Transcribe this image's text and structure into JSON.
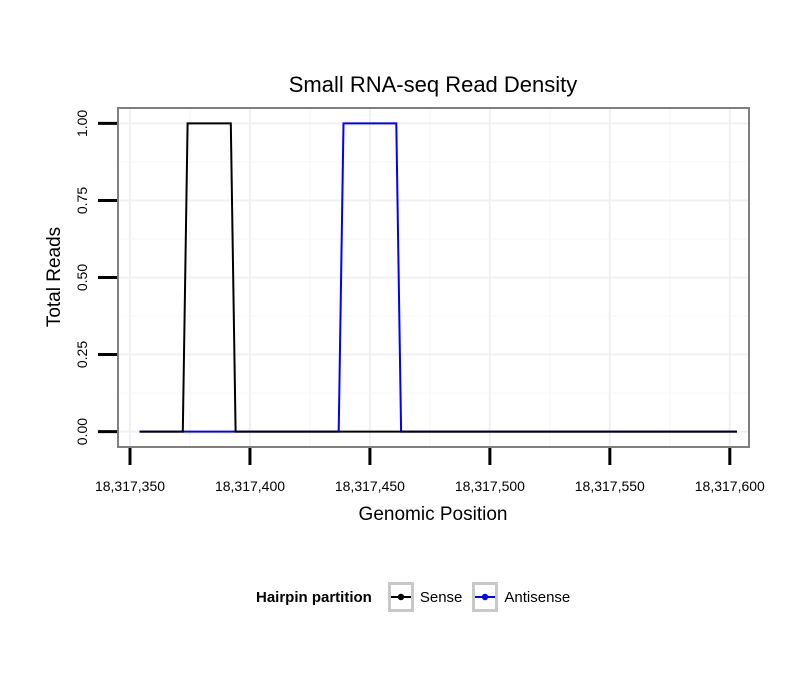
{
  "chart_data": {
    "type": "line",
    "title": "Small RNA-seq Read Density",
    "xlabel": "Genomic Position",
    "ylabel": "Total Reads",
    "xlim": [
      18317345,
      18317608
    ],
    "ylim": [
      -0.05,
      1.05
    ],
    "x_ticks": [
      18317350,
      18317400,
      18317450,
      18317500,
      18317550,
      18317600
    ],
    "x_tick_labels": [
      "18,317,350",
      "18,317,400",
      "18,317,450",
      "18,317,500",
      "18,317,550",
      "18,317,600"
    ],
    "y_ticks": [
      0,
      0.25,
      0.5,
      0.75,
      1.0
    ],
    "y_tick_labels": [
      "0.00",
      "0.25",
      "0.50",
      "0.75",
      "1.00"
    ],
    "grid": true,
    "legend_position": "bottom",
    "series": [
      {
        "name": "Antisense",
        "color": "#0000ff",
        "x": [
          18317354,
          18317437,
          18317439,
          18317461,
          18317463,
          18317603
        ],
        "y": [
          0,
          0,
          1,
          1,
          0,
          0
        ]
      },
      {
        "name": "Sense",
        "color": "#000000",
        "x": [
          18317354,
          18317372,
          18317374,
          18317392,
          18317394,
          18317603
        ],
        "y": [
          0,
          0,
          1,
          1,
          0,
          0
        ]
      }
    ]
  },
  "legend": {
    "title": "Hairpin partition",
    "items": [
      {
        "label": "Sense",
        "color": "#000000"
      },
      {
        "label": "Antisense",
        "color": "#0000ff"
      }
    ]
  }
}
